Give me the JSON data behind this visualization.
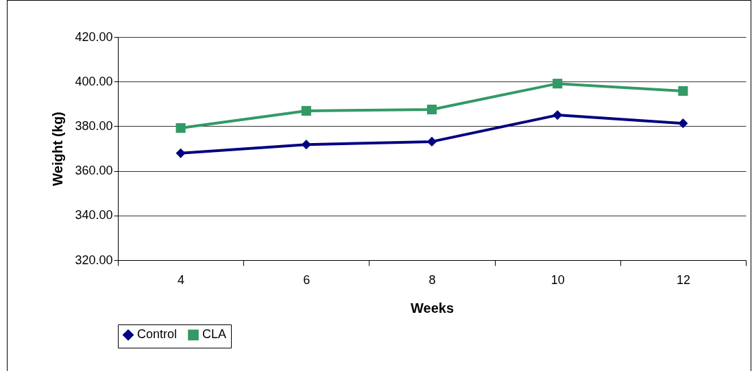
{
  "chart_data": {
    "type": "line",
    "xlabel": "Weeks",
    "ylabel": "Weight (kg)",
    "categories": [
      "4",
      "6",
      "8",
      "10",
      "12"
    ],
    "series": [
      {
        "name": "Control",
        "color": "#000080",
        "marker": "diamond",
        "values": [
          367.9,
          371.8,
          373.1,
          385.0,
          381.3
        ]
      },
      {
        "name": "CLA",
        "color": "#339966",
        "marker": "square",
        "values": [
          379.2,
          386.9,
          387.5,
          399.1,
          395.8
        ]
      }
    ],
    "ylim": [
      320,
      420
    ],
    "yticks": [
      {
        "value": 320,
        "label": "320.00"
      },
      {
        "value": 340,
        "label": "340.00"
      },
      {
        "value": 360,
        "label": "360.00"
      },
      {
        "value": 380,
        "label": "380.00"
      },
      {
        "value": 400,
        "label": "400.00"
      },
      {
        "value": 420,
        "label": "420.00"
      }
    ],
    "grid": "y",
    "legend": "bottom"
  }
}
